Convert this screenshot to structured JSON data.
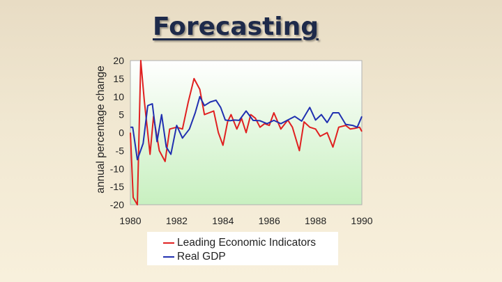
{
  "slide": {
    "title": "Forecasting"
  },
  "chart_data": {
    "type": "line",
    "title": "",
    "xlabel": "",
    "ylabel": "annual percentage change",
    "xlim": [
      1980,
      1990
    ],
    "ylim": [
      -20,
      20
    ],
    "xticks": [
      1980,
      1982,
      1984,
      1986,
      1988,
      1990
    ],
    "xtick_labels": [
      "1980",
      "1982",
      "1984",
      "1986",
      "1988",
      "1990"
    ],
    "yticks": [
      20,
      15,
      10,
      5,
      0,
      -5,
      -10,
      -15,
      -20
    ],
    "ytick_labels": [
      "20",
      "15",
      "10",
      "5",
      "0",
      "-5",
      "-10",
      "-15",
      "-20"
    ],
    "grid": false,
    "legend_position": "bottom",
    "series": [
      {
        "name": "Leading Economic Indicators",
        "color": "#e02020",
        "x": [
          1980,
          1980.12,
          1980.3,
          1980.45,
          1980.6,
          1980.85,
          1981.0,
          1981.25,
          1981.5,
          1981.7,
          1982.0,
          1982.25,
          1982.5,
          1982.75,
          1983.0,
          1983.2,
          1983.4,
          1983.6,
          1983.8,
          1984.0,
          1984.2,
          1984.35,
          1984.6,
          1984.8,
          1985.0,
          1985.2,
          1985.4,
          1985.6,
          1985.8,
          1986.0,
          1986.2,
          1986.5,
          1986.8,
          1987.0,
          1987.3,
          1987.5,
          1987.75,
          1988.0,
          1988.2,
          1988.5,
          1988.75,
          1989.0,
          1989.3,
          1989.5,
          1989.7,
          1989.9,
          1990.0
        ],
        "values": [
          0,
          -18,
          -20,
          20,
          9,
          -6,
          4.5,
          -5,
          -8,
          1,
          1.5,
          1,
          8.5,
          15,
          12,
          5,
          5.5,
          6,
          0,
          -3.5,
          3,
          5,
          1,
          4,
          0,
          5,
          4,
          1.5,
          2.5,
          2,
          5.5,
          1,
          3.5,
          1.5,
          -5,
          3,
          1.5,
          1,
          -1,
          0,
          -4,
          1.5,
          2,
          1,
          1.2,
          1.5,
          0.3
        ]
      },
      {
        "name": "Real GDP",
        "color": "#2030b0",
        "x": [
          1980,
          1980.1,
          1980.3,
          1980.55,
          1980.75,
          1980.95,
          1981.15,
          1981.35,
          1981.55,
          1981.75,
          1982.0,
          1982.25,
          1982.55,
          1982.8,
          1983.0,
          1983.2,
          1983.45,
          1983.7,
          1983.9,
          1984.1,
          1984.3,
          1984.5,
          1984.7,
          1985.0,
          1985.3,
          1985.6,
          1985.9,
          1986.2,
          1986.5,
          1986.8,
          1987.1,
          1987.4,
          1987.75,
          1988.0,
          1988.25,
          1988.5,
          1988.75,
          1989.0,
          1989.3,
          1989.6,
          1989.8,
          1990.0
        ],
        "values": [
          1.5,
          1.5,
          -7.5,
          -3,
          7.5,
          8,
          -2.5,
          5,
          -4,
          -6,
          2,
          -1.5,
          1,
          5.5,
          10,
          7.5,
          8.5,
          9,
          7,
          3.5,
          3.3,
          3.5,
          3.4,
          6,
          3.4,
          3.3,
          2.5,
          3.4,
          2.5,
          3.5,
          4.5,
          3.2,
          7,
          3.5,
          5,
          2.8,
          5.5,
          5.5,
          2.3,
          2,
          1.5,
          4.5
        ]
      }
    ]
  }
}
